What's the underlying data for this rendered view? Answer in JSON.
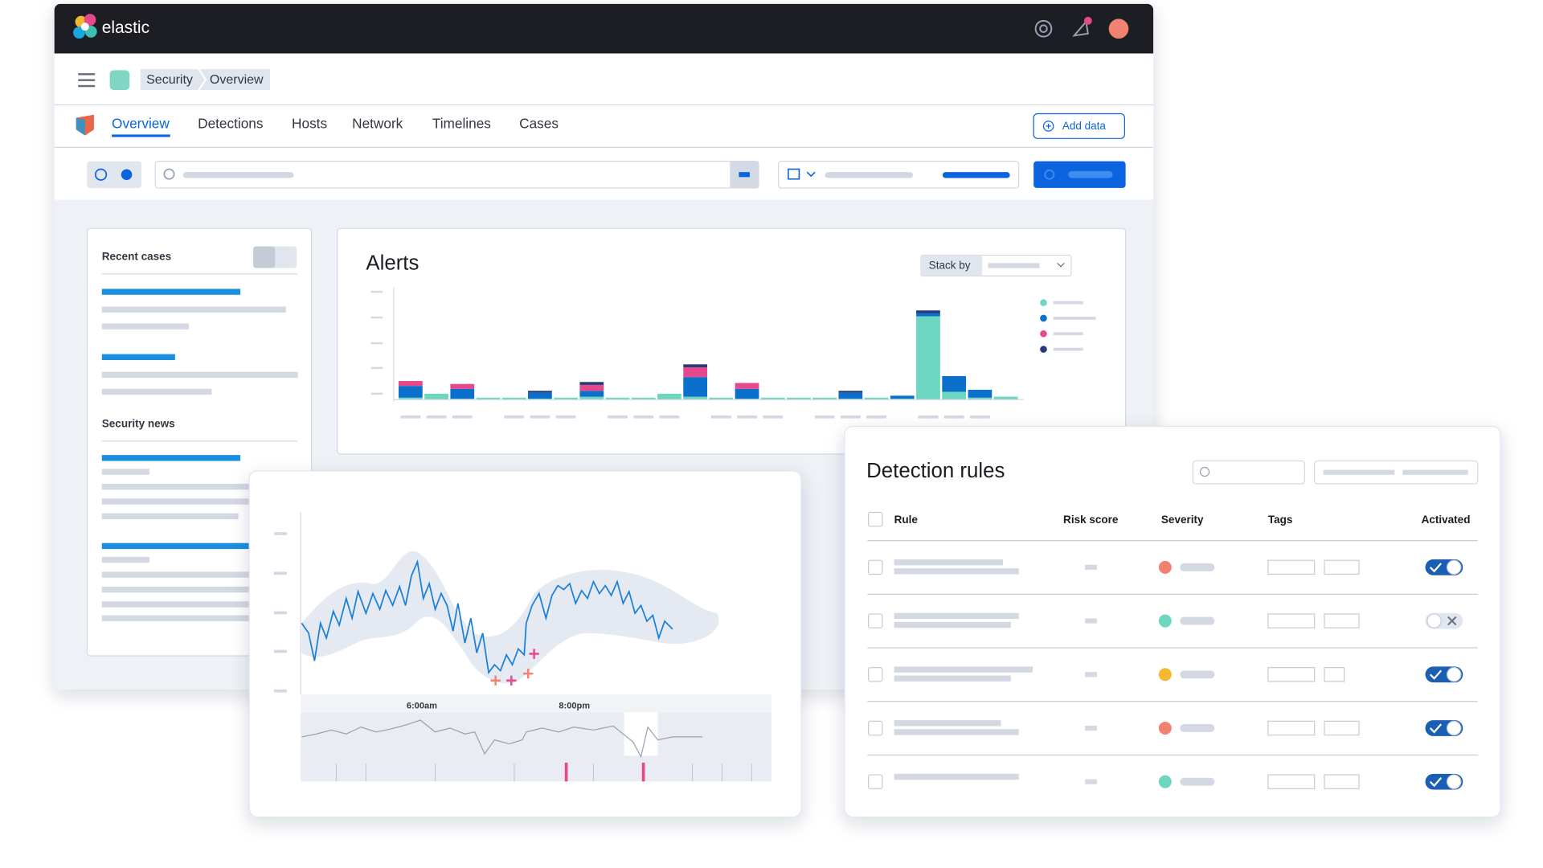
{
  "header": {
    "logo": "elastic"
  },
  "breadcrumbs": [
    "Security",
    "Overview"
  ],
  "tabs": [
    "Overview",
    "Detections",
    "Hosts",
    "Network",
    "Timelines",
    "Cases"
  ],
  "add_data": "Add data",
  "recent_cases": {
    "title": "Recent cases"
  },
  "security_news": {
    "title": "Security news"
  },
  "alerts": {
    "title": "Alerts",
    "stack_by": "Stack by",
    "chart_data": {
      "type": "bar",
      "stacked": true,
      "ylim": [
        0,
        110
      ],
      "series": [
        {
          "color": "#6dd6c1",
          "values": [
            2,
            6,
            1,
            2,
            2,
            1,
            2,
            3,
            2,
            2,
            6,
            3,
            2,
            1,
            2,
            2,
            2,
            1,
            2,
            1,
            85,
            8,
            2,
            3
          ]
        },
        {
          "color": "#0b6fcc",
          "values": [
            12,
            0,
            10,
            0,
            0,
            6,
            0,
            6,
            0,
            0,
            0,
            20,
            0,
            10,
            0,
            0,
            0,
            6,
            0,
            3,
            3,
            16,
            8,
            0
          ]
        },
        {
          "color": "#e7478b",
          "values": [
            5,
            0,
            5,
            0,
            0,
            0,
            0,
            6,
            0,
            0,
            0,
            10,
            0,
            6,
            0,
            0,
            0,
            0,
            0,
            0,
            0,
            0,
            0,
            0
          ]
        },
        {
          "color": "#243d7a",
          "values": [
            0,
            0,
            0,
            0,
            0,
            2,
            0,
            3,
            0,
            0,
            0,
            3,
            0,
            0,
            0,
            0,
            0,
            2,
            0,
            0,
            3,
            0,
            0,
            0
          ]
        }
      ]
    }
  },
  "timeline": {
    "x_labels": [
      "6:00am",
      "8:00pm"
    ]
  },
  "detection_rules": {
    "title": "Detection rules",
    "columns": [
      "Rule",
      "Risk score",
      "Severity",
      "Tags",
      "Activated"
    ],
    "rows": [
      {
        "severity_color": "#f0826f",
        "activated": true
      },
      {
        "severity_color": "#6dd6c1",
        "activated": false
      },
      {
        "severity_color": "#f5b82e",
        "activated": true
      },
      {
        "severity_color": "#f0826f",
        "activated": true
      },
      {
        "severity_color": "#6dd6c1",
        "activated": true
      }
    ]
  }
}
